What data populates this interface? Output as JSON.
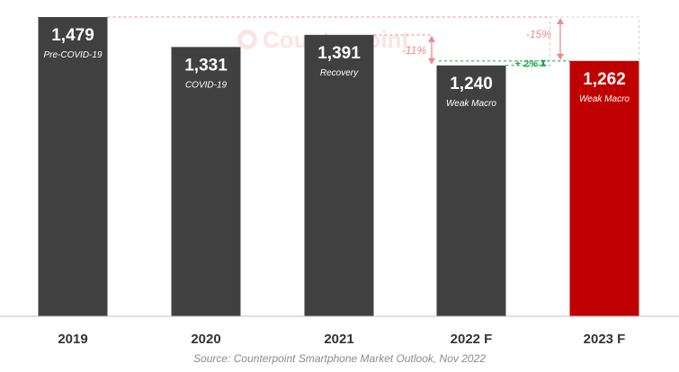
{
  "chart_data": {
    "type": "bar",
    "categories": [
      "2019",
      "2020",
      "2021",
      "2022 F",
      "2023 F"
    ],
    "values": [
      1479,
      1331,
      1391,
      1240,
      1262
    ],
    "value_labels": [
      "1,479",
      "1,331",
      "1,391",
      "1,240",
      "1,262"
    ],
    "bar_annotations": [
      "Pre-COVID-19",
      "COVID-19",
      "Recovery",
      "Weak Macro",
      "Weak Macro"
    ],
    "ylim": [
      0,
      1479
    ],
    "title": "",
    "xlabel": "",
    "ylabel": "",
    "grid": false,
    "colors": {
      "bar": "#404040",
      "highlight_bar": "#c00000",
      "negative_change": "#f08a8a",
      "positive_change": "#1aa64a"
    },
    "highlight_index": 4,
    "change_annotations": [
      {
        "label": "-15%",
        "from": "2019",
        "to": "2023 F",
        "direction": "down"
      },
      {
        "label": "-11%",
        "from": "2021",
        "to": "2022 F",
        "direction": "down"
      },
      {
        "label": "+ 2%",
        "from": "2022 F",
        "to": "2023 F",
        "direction": "up"
      }
    ]
  },
  "watermark": "Counterpoint",
  "source": "Source: Counterpoint Smartphone Market Outlook, Nov 2022"
}
